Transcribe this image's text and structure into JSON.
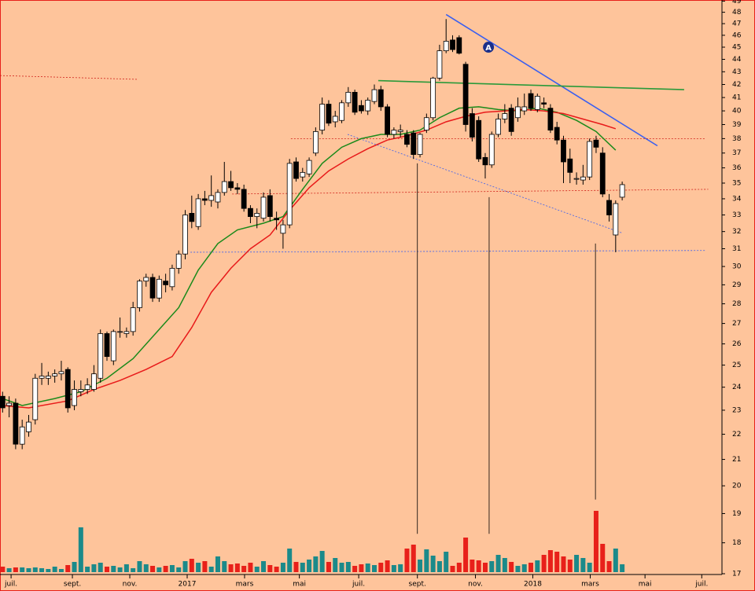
{
  "chart_data": {
    "type": "candlestick",
    "log_y": true,
    "ylim": [
      17,
      49.1
    ],
    "yticks": [
      17,
      18,
      19,
      20,
      21,
      22,
      23,
      24,
      25,
      26,
      27,
      28,
      29,
      30,
      31,
      32,
      33,
      34,
      35,
      36,
      37,
      38,
      39,
      40,
      41,
      42,
      43,
      44,
      45,
      46,
      47,
      48,
      49
    ],
    "xlim": [
      -0.4,
      110.3
    ],
    "xticks": [
      {
        "value": 1.3,
        "label": "juil."
      },
      {
        "value": 10.7,
        "label": "sept."
      },
      {
        "value": 19.5,
        "label": "nov."
      },
      {
        "value": 28.3,
        "label": "2017"
      },
      {
        "value": 37.1,
        "label": "mars"
      },
      {
        "value": 45.5,
        "label": "mai"
      },
      {
        "value": 54.6,
        "label": "juil."
      },
      {
        "value": 63.6,
        "label": "sept."
      },
      {
        "value": 72.5,
        "label": "nov."
      },
      {
        "value": 81.3,
        "label": "2018"
      },
      {
        "value": 90.1,
        "label": "mars"
      },
      {
        "value": 98.5,
        "label": "mai"
      },
      {
        "value": 107.2,
        "label": "juil."
      }
    ],
    "candles": [
      [
        23.6,
        23.8,
        22.9,
        23.1
      ],
      [
        23.2,
        23.6,
        22.7,
        23.3
      ],
      [
        23.3,
        23.5,
        21.4,
        21.6
      ],
      [
        21.6,
        22.6,
        21.4,
        22.3
      ],
      [
        22.1,
        22.8,
        21.9,
        22.5
      ],
      [
        22.6,
        24.6,
        22.4,
        24.4
      ],
      [
        24.4,
        25.1,
        24.1,
        24.5
      ],
      [
        24.4,
        24.7,
        24.1,
        24.5
      ],
      [
        24.5,
        24.8,
        24.2,
        24.6
      ],
      [
        24.6,
        25.2,
        24.3,
        24.7
      ],
      [
        24.8,
        24.9,
        22.9,
        23.1
      ],
      [
        23.2,
        24.3,
        23.0,
        23.9
      ],
      [
        23.8,
        24.3,
        23.6,
        23.9
      ],
      [
        23.9,
        24.4,
        23.7,
        24.1
      ],
      [
        23.9,
        25.0,
        23.8,
        24.6
      ],
      [
        24.4,
        26.7,
        24.2,
        26.5
      ],
      [
        26.5,
        26.6,
        25.2,
        25.4
      ],
      [
        25.2,
        26.7,
        25.0,
        26.6
      ],
      [
        26.6,
        27.3,
        26.3,
        26.6
      ],
      [
        26.5,
        26.8,
        26.3,
        26.6
      ],
      [
        26.6,
        28.1,
        26.4,
        27.8
      ],
      [
        27.8,
        29.3,
        27.6,
        29.2
      ],
      [
        29.2,
        29.6,
        28.9,
        29.4
      ],
      [
        29.4,
        29.6,
        28.1,
        28.3
      ],
      [
        28.3,
        29.5,
        28.1,
        29.3
      ],
      [
        29.2,
        29.6,
        28.6,
        29.0
      ],
      [
        28.9,
        30.1,
        28.7,
        29.9
      ],
      [
        29.9,
        30.9,
        29.6,
        30.7
      ],
      [
        30.7,
        33.3,
        30.4,
        33.0
      ],
      [
        33.1,
        34.2,
        32.2,
        32.6
      ],
      [
        32.3,
        34.3,
        32.1,
        34.0
      ],
      [
        34.0,
        34.5,
        33.6,
        33.9
      ],
      [
        33.9,
        35.5,
        33.5,
        34.2
      ],
      [
        33.8,
        34.6,
        33.4,
        34.4
      ],
      [
        34.4,
        36.4,
        34.2,
        35.1
      ],
      [
        35.1,
        35.8,
        34.5,
        34.7
      ],
      [
        34.7,
        35.0,
        34.3,
        34.6
      ],
      [
        34.6,
        34.9,
        33.2,
        33.4
      ],
      [
        33.4,
        33.6,
        32.5,
        32.9
      ],
      [
        32.9,
        33.4,
        32.2,
        33.1
      ],
      [
        32.8,
        34.4,
        32.6,
        34.1
      ],
      [
        34.2,
        34.6,
        32.6,
        32.9
      ],
      [
        32.8,
        33.2,
        32.1,
        32.7
      ],
      [
        31.9,
        32.7,
        31.0,
        32.4
      ],
      [
        32.4,
        36.6,
        32.2,
        36.3
      ],
      [
        36.4,
        36.7,
        35.1,
        35.3
      ],
      [
        35.4,
        36.0,
        35.1,
        35.7
      ],
      [
        35.6,
        36.7,
        35.4,
        36.5
      ],
      [
        37.0,
        38.8,
        36.8,
        38.5
      ],
      [
        38.6,
        41.0,
        38.3,
        40.5
      ],
      [
        40.5,
        40.8,
        38.9,
        39.1
      ],
      [
        39.2,
        40.0,
        38.8,
        39.6
      ],
      [
        39.3,
        40.8,
        39.1,
        40.6
      ],
      [
        40.6,
        41.8,
        40.3,
        41.4
      ],
      [
        41.4,
        41.6,
        39.7,
        39.9
      ],
      [
        40.4,
        40.8,
        39.8,
        40.0
      ],
      [
        40.0,
        41.0,
        39.7,
        40.8
      ],
      [
        40.7,
        42.0,
        40.5,
        41.6
      ],
      [
        41.6,
        41.9,
        40.0,
        40.3
      ],
      [
        40.3,
        40.5,
        38.1,
        38.3
      ],
      [
        38.3,
        38.8,
        38.0,
        38.6
      ],
      [
        38.5,
        39.0,
        38.1,
        38.6
      ],
      [
        38.3,
        38.6,
        37.4,
        37.6
      ],
      [
        38.4,
        38.6,
        36.6,
        36.9
      ],
      [
        36.9,
        38.4,
        36.7,
        38.3
      ],
      [
        38.6,
        39.8,
        38.4,
        39.5
      ],
      [
        39.5,
        42.6,
        39.3,
        42.5
      ],
      [
        42.5,
        45.2,
        42.3,
        44.7
      ],
      [
        44.7,
        47.4,
        44.5,
        45.5
      ],
      [
        45.6,
        46.0,
        44.6,
        44.8
      ],
      [
        45.8,
        46.0,
        44.4,
        44.5
      ],
      [
        43.6,
        43.8,
        38.5,
        39.0
      ],
      [
        39.8,
        40.2,
        37.8,
        38.1
      ],
      [
        39.3,
        39.6,
        36.4,
        36.6
      ],
      [
        36.7,
        37.0,
        35.3,
        36.2
      ],
      [
        36.2,
        38.5,
        36.0,
        38.3
      ],
      [
        38.3,
        39.8,
        38.1,
        39.4
      ],
      [
        39.4,
        40.5,
        39.1,
        39.8
      ],
      [
        40.2,
        40.5,
        38.2,
        38.5
      ],
      [
        39.5,
        41.0,
        39.2,
        40.3
      ],
      [
        40.0,
        41.3,
        39.7,
        40.3
      ],
      [
        41.3,
        41.6,
        40.0,
        40.2
      ],
      [
        40.1,
        41.3,
        39.9,
        41.1
      ],
      [
        40.6,
        41.0,
        40.2,
        40.5
      ],
      [
        40.2,
        40.5,
        38.4,
        38.6
      ],
      [
        38.8,
        39.2,
        37.6,
        37.9
      ],
      [
        37.9,
        38.2,
        35.0,
        36.4
      ],
      [
        36.6,
        37.3,
        35.0,
        35.7
      ],
      [
        35.3,
        35.7,
        34.9,
        35.3
      ],
      [
        35.2,
        36.2,
        34.9,
        35.4
      ],
      [
        35.4,
        38.0,
        35.2,
        37.8
      ],
      [
        37.9,
        38.2,
        37.0,
        37.4
      ],
      [
        37.0,
        37.4,
        34.1,
        34.3
      ],
      [
        33.9,
        34.3,
        32.6,
        33.0
      ],
      [
        31.8,
        33.9,
        30.8,
        33.7
      ],
      [
        34.1,
        35.1,
        33.9,
        34.9
      ]
    ],
    "volume": [
      7,
      5,
      6,
      6,
      5,
      6,
      5,
      4,
      7,
      4,
      9,
      13,
      57,
      7,
      10,
      12,
      7,
      8,
      6,
      10,
      5,
      14,
      10,
      8,
      6,
      8,
      9,
      6,
      14,
      17,
      12,
      14,
      7,
      20,
      14,
      10,
      11,
      8,
      12,
      7,
      14,
      9,
      7,
      12,
      30,
      13,
      12,
      16,
      20,
      27,
      13,
      18,
      12,
      13,
      8,
      10,
      11,
      9,
      12,
      15,
      9,
      10,
      30,
      35,
      16,
      29,
      21,
      14,
      26,
      8,
      12,
      44,
      16,
      15,
      12,
      14,
      22,
      18,
      13,
      8,
      10,
      12,
      15,
      22,
      28,
      26,
      20,
      16,
      22,
      18,
      12,
      78,
      36,
      14,
      30,
      10
    ],
    "volume_lim": [
      0,
      100
    ],
    "up_color": "#1b8a8a",
    "down_color": "#e8201a",
    "moving_averages": [
      {
        "color": "#1a8a1a",
        "x": [
          0,
          3,
          8,
          12,
          16,
          20,
          24,
          27,
          30,
          33,
          36,
          40,
          43,
          46,
          49,
          52,
          55,
          58,
          61,
          64,
          67,
          70,
          73,
          76,
          79,
          82,
          85,
          88,
          91,
          94
        ],
        "values": [
          23.5,
          23.2,
          23.5,
          23.8,
          24.4,
          25.3,
          26.7,
          27.8,
          29.8,
          31.3,
          32.1,
          32.5,
          32.9,
          34.6,
          36.3,
          37.4,
          38.0,
          38.3,
          38.3,
          38.6,
          39.5,
          40.2,
          40.3,
          40.1,
          40.0,
          40.2,
          39.9,
          39.3,
          38.5,
          37.2
        ]
      },
      {
        "color": "#e81a1a",
        "x": [
          0,
          4,
          10,
          14,
          18,
          22,
          26,
          29,
          32,
          35,
          38,
          41,
          44,
          47,
          50,
          53,
          56,
          59,
          62,
          65,
          68,
          71,
          74,
          77,
          80,
          83,
          86,
          89,
          92,
          94
        ],
        "values": [
          23.2,
          23.1,
          23.4,
          23.9,
          24.3,
          24.8,
          25.4,
          26.8,
          28.6,
          29.9,
          31.0,
          31.8,
          33.3,
          34.7,
          35.8,
          36.6,
          37.3,
          37.9,
          38.2,
          38.6,
          39.2,
          39.6,
          39.9,
          40.0,
          40.1,
          40.0,
          39.8,
          39.4,
          39.0,
          38.7
        ]
      }
    ],
    "lines": [
      {
        "x1": 68,
        "y1": 47.8,
        "x2": 100.4,
        "y2": 37.5,
        "color": "#3a5ff0",
        "dash": false
      },
      {
        "x1": 57.6,
        "y1": 42.3,
        "x2": 104.5,
        "y2": 41.6,
        "color": "#2a9a3a",
        "dash": false
      },
      {
        "x1": -0.4,
        "y1": 42.7,
        "x2": 20.7,
        "y2": 42.4,
        "color": "#d0201a",
        "dash": true
      },
      {
        "x1": 44.2,
        "y1": 38.0,
        "x2": 107.8,
        "y2": 38.0,
        "color": "#d0201a",
        "dash": true
      },
      {
        "x1": 35.2,
        "y1": 34.3,
        "x2": 108.2,
        "y2": 34.6,
        "color": "#d0201a",
        "dash": true
      },
      {
        "x1": 28.8,
        "y1": 30.8,
        "x2": 107.8,
        "y2": 30.9,
        "color": "#3a5ff0",
        "dash": true
      },
      {
        "x1": 52.9,
        "y1": 38.3,
        "x2": 95.1,
        "y2": 31.9,
        "color": "#3a5ff0",
        "dash": true
      },
      {
        "x1": 63.6,
        "y1": 36.3,
        "x2": 63.6,
        "y2": 18.3,
        "color": "#000000",
        "dash": false
      },
      {
        "x1": 74.6,
        "y1": 34.1,
        "x2": 74.6,
        "y2": 18.3,
        "color": "#000000",
        "dash": false
      },
      {
        "x1": 90.9,
        "y1": 31.3,
        "x2": 90.9,
        "y2": 19.5,
        "color": "#000000",
        "dash": false
      }
    ],
    "annotation": {
      "text": "A",
      "x": 74.5,
      "y": 45.0
    }
  }
}
